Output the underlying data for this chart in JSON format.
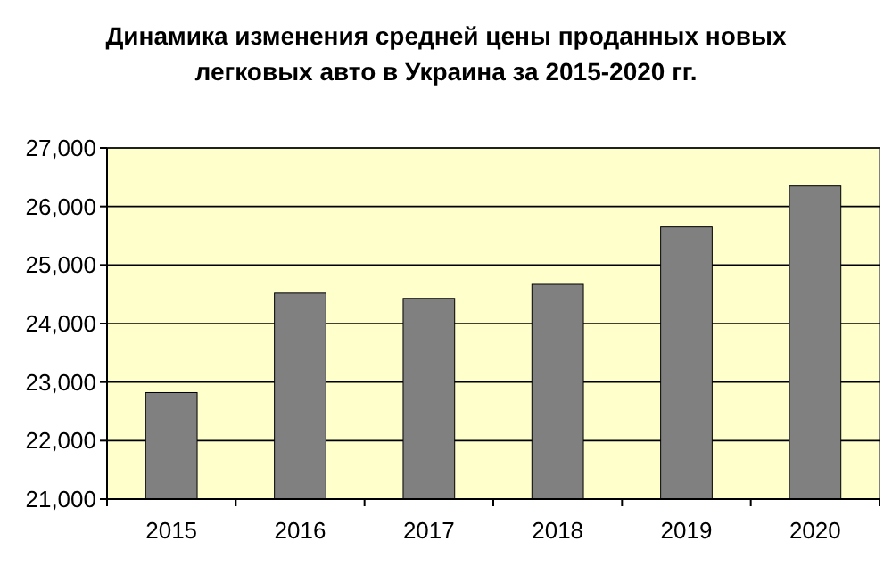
{
  "chart_data": {
    "type": "bar",
    "title": "Динамика изменения средней цены проданных новых\nлегковых авто в Украина за 2015-2020 гг.",
    "categories": [
      "2015",
      "2016",
      "2017",
      "2018",
      "2019",
      "2020"
    ],
    "values": [
      22820,
      24520,
      24430,
      24670,
      25650,
      26350
    ],
    "color": "#808080",
    "ylim": [
      21000,
      27000
    ],
    "yticks": [
      {
        "value": 21000,
        "label": "21,000"
      },
      {
        "value": 22000,
        "label": "22,000"
      },
      {
        "value": 23000,
        "label": "23,000"
      },
      {
        "value": 24000,
        "label": "24,000"
      },
      {
        "value": 25000,
        "label": "25,000"
      },
      {
        "value": 26000,
        "label": "26,000"
      },
      {
        "value": 27000,
        "label": "27,000"
      }
    ],
    "grid": "y"
  }
}
